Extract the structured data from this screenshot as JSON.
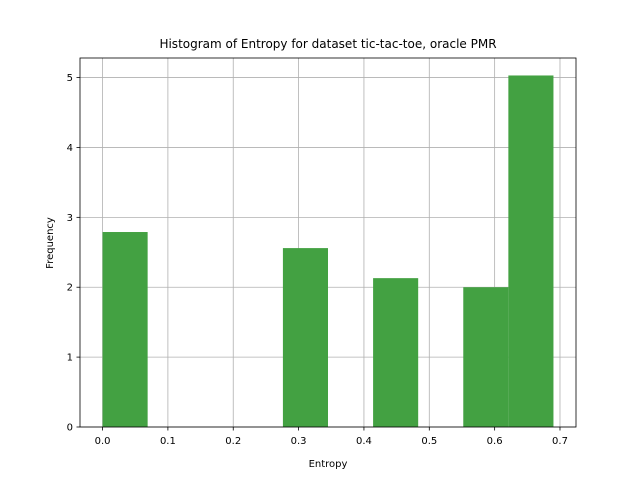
{
  "chart_data": {
    "type": "bar",
    "title": "Histogram of Entropy for dataset tic-tac-toe, oracle PMR",
    "xlabel": "Entropy",
    "ylabel": "Frequency",
    "xlim": [
      -0.0345,
      0.7245
    ],
    "ylim": [
      0,
      5.28
    ],
    "grid": true,
    "bar_color": "#43a142",
    "bins": [
      {
        "x0": 0.0,
        "x1": 0.069,
        "value": 2.79
      },
      {
        "x0": 0.069,
        "x1": 0.138,
        "value": 0
      },
      {
        "x0": 0.138,
        "x1": 0.207,
        "value": 0
      },
      {
        "x0": 0.207,
        "x1": 0.276,
        "value": 0
      },
      {
        "x0": 0.276,
        "x1": 0.345,
        "value": 2.56
      },
      {
        "x0": 0.345,
        "x1": 0.414,
        "value": 0
      },
      {
        "x0": 0.414,
        "x1": 0.483,
        "value": 2.13
      },
      {
        "x0": 0.483,
        "x1": 0.552,
        "value": 0
      },
      {
        "x0": 0.552,
        "x1": 0.621,
        "value": 2.0
      },
      {
        "x0": 0.621,
        "x1": 0.69,
        "value": 5.03
      }
    ],
    "xticks": [
      {
        "value": 0.0,
        "label": "0.0"
      },
      {
        "value": 0.1,
        "label": "0.1"
      },
      {
        "value": 0.2,
        "label": "0.2"
      },
      {
        "value": 0.3,
        "label": "0.3"
      },
      {
        "value": 0.4,
        "label": "0.4"
      },
      {
        "value": 0.5,
        "label": "0.5"
      },
      {
        "value": 0.6,
        "label": "0.6"
      },
      {
        "value": 0.7,
        "label": "0.7"
      }
    ],
    "yticks": [
      {
        "value": 0,
        "label": "0"
      },
      {
        "value": 1,
        "label": "1"
      },
      {
        "value": 2,
        "label": "2"
      },
      {
        "value": 3,
        "label": "3"
      },
      {
        "value": 4,
        "label": "4"
      },
      {
        "value": 5,
        "label": "5"
      }
    ]
  }
}
